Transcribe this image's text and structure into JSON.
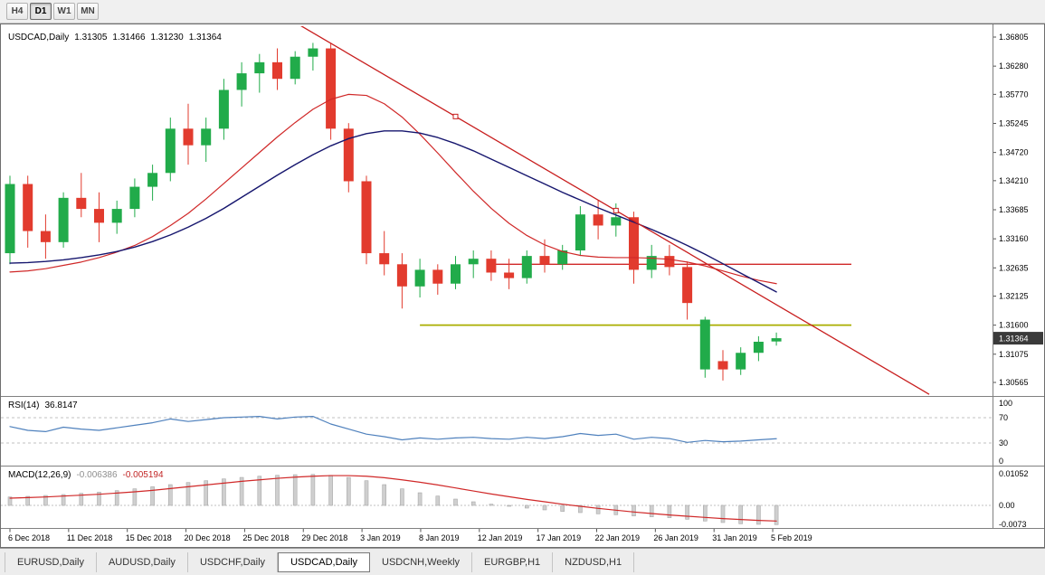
{
  "toolbar": {
    "timeframes": [
      {
        "label": "H4",
        "active": false
      },
      {
        "label": "D1",
        "active": true
      },
      {
        "label": "W1",
        "active": false
      },
      {
        "label": "MN",
        "active": false
      }
    ]
  },
  "chart": {
    "symbol_title": "USDCAD,Daily",
    "ohlc": {
      "open": "1.31305",
      "high": "1.31466",
      "low": "1.31230",
      "close": "1.31364"
    },
    "current_price": "1.31364",
    "price_axis": [
      "1.36805",
      "1.36280",
      "1.35770",
      "1.35245",
      "1.34720",
      "1.34210",
      "1.33685",
      "1.33160",
      "1.32635",
      "1.32125",
      "1.31600",
      "1.31075",
      "1.30565"
    ],
    "date_axis": [
      "6 Dec 2018",
      "11 Dec 2018",
      "15 Dec 2018",
      "20 Dec 2018",
      "25 Dec 2018",
      "29 Dec 2018",
      "3 Jan 2019",
      "8 Jan 2019",
      "12 Jan 2019",
      "17 Jan 2019",
      "22 Jan 2019",
      "26 Jan 2019",
      "31 Jan 2019",
      "5 Feb 2019"
    ]
  },
  "chart_data": {
    "type": "candlestick",
    "symbol": "USDCAD",
    "timeframe": "Daily",
    "ylim": [
      1.30565,
      1.36805
    ],
    "candles": [
      [
        "6 Dec",
        1.329,
        1.343,
        1.327,
        1.3415
      ],
      [
        "7 Dec",
        1.3415,
        1.343,
        1.33,
        1.333
      ],
      [
        "10 Dec",
        1.333,
        1.336,
        1.328,
        1.331
      ],
      [
        "11 Dec",
        1.331,
        1.34,
        1.33,
        1.339
      ],
      [
        "12 Dec",
        1.339,
        1.3435,
        1.3355,
        1.337
      ],
      [
        "13 Dec",
        1.337,
        1.34,
        1.331,
        1.3345
      ],
      [
        "14 Dec",
        1.3345,
        1.3385,
        1.3325,
        1.337
      ],
      [
        "17 Dec",
        1.337,
        1.3425,
        1.3355,
        1.341
      ],
      [
        "18 Dec",
        1.341,
        1.345,
        1.3385,
        1.3435
      ],
      [
        "19 Dec",
        1.3435,
        1.3535,
        1.342,
        1.3515
      ],
      [
        "20 Dec",
        1.3515,
        1.356,
        1.345,
        1.3485
      ],
      [
        "21 Dec",
        1.3485,
        1.3535,
        1.3455,
        1.3515
      ],
      [
        "24 Dec",
        1.3515,
        1.3605,
        1.3495,
        1.3585
      ],
      [
        "26 Dec",
        1.3585,
        1.3635,
        1.3555,
        1.3615
      ],
      [
        "27 Dec",
        1.3615,
        1.365,
        1.358,
        1.3635
      ],
      [
        "28 Dec",
        1.3635,
        1.366,
        1.3585,
        1.3605
      ],
      [
        "31 Dec",
        1.3605,
        1.3655,
        1.3595,
        1.3645
      ],
      [
        "1 Jan",
        1.3645,
        1.367,
        1.362,
        1.366
      ],
      [
        "2 Jan",
        1.366,
        1.367,
        1.3495,
        1.3515
      ],
      [
        "3 Jan",
        1.3515,
        1.3525,
        1.34,
        1.342
      ],
      [
        "4 Jan",
        1.342,
        1.343,
        1.327,
        1.329
      ],
      [
        "7 Jan",
        1.329,
        1.333,
        1.325,
        1.327
      ],
      [
        "8 Jan",
        1.327,
        1.329,
        1.319,
        1.323
      ],
      [
        "9 Jan",
        1.323,
        1.328,
        1.321,
        1.326
      ],
      [
        "10 Jan",
        1.326,
        1.327,
        1.3215,
        1.3235
      ],
      [
        "11 Jan",
        1.3235,
        1.3285,
        1.3225,
        1.327
      ],
      [
        "14 Jan",
        1.327,
        1.3295,
        1.3245,
        1.328
      ],
      [
        "15 Jan",
        1.328,
        1.3295,
        1.324,
        1.3255
      ],
      [
        "16 Jan",
        1.3255,
        1.328,
        1.3225,
        1.3245
      ],
      [
        "17 Jan",
        1.3245,
        1.3295,
        1.3235,
        1.3285
      ],
      [
        "18 Jan",
        1.3285,
        1.3315,
        1.3255,
        1.327
      ],
      [
        "21 Jan",
        1.327,
        1.3305,
        1.326,
        1.3295
      ],
      [
        "22 Jan",
        1.3295,
        1.3375,
        1.3285,
        1.336
      ],
      [
        "23 Jan",
        1.336,
        1.3385,
        1.3315,
        1.334
      ],
      [
        "24 Jan",
        1.334,
        1.338,
        1.332,
        1.3355
      ],
      [
        "25 Jan",
        1.3355,
        1.3365,
        1.3235,
        1.326
      ],
      [
        "28 Jan",
        1.326,
        1.3305,
        1.3245,
        1.3285
      ],
      [
        "29 Jan",
        1.3285,
        1.3305,
        1.325,
        1.3265
      ],
      [
        "30 Jan",
        1.3265,
        1.3275,
        1.317,
        1.32
      ],
      [
        "31 Jan",
        1.308,
        1.3175,
        1.3065,
        1.317
      ],
      [
        "1 Feb",
        1.3095,
        1.3115,
        1.306,
        1.308
      ],
      [
        "4 Feb",
        1.308,
        1.312,
        1.307,
        1.311
      ],
      [
        "5 Feb",
        1.311,
        1.314,
        1.3095,
        1.313
      ],
      [
        "6 Feb",
        1.31305,
        1.31466,
        1.3123,
        1.31364
      ]
    ],
    "ma_fast": [
      1.3256,
      1.3258,
      1.3262,
      1.3268,
      1.3274,
      1.3282,
      1.3292,
      1.3304,
      1.332,
      1.334,
      1.3362,
      1.3388,
      1.3416,
      1.3444,
      1.3472,
      1.35,
      1.3526,
      1.355,
      1.3568,
      1.3577,
      1.3575,
      1.356,
      1.3536,
      1.3505,
      1.3471,
      1.3436,
      1.3402,
      1.3371,
      1.3344,
      1.3322,
      1.3305,
      1.3293,
      1.3286,
      1.3283,
      1.3282,
      1.3282,
      1.3281,
      1.3279,
      1.3274,
      1.3267,
      1.3258,
      1.3249,
      1.3241,
      1.3235
    ],
    "ma_slow": [
      1.3272,
      1.3273,
      1.3275,
      1.3278,
      1.3282,
      1.3287,
      1.3293,
      1.3301,
      1.3311,
      1.3323,
      1.3337,
      1.3353,
      1.3371,
      1.3391,
      1.3411,
      1.3431,
      1.345,
      1.3468,
      1.3484,
      1.3497,
      1.3506,
      1.3511,
      1.3511,
      1.3507,
      1.3499,
      1.3488,
      1.3475,
      1.346,
      1.3445,
      1.343,
      1.3415,
      1.34,
      1.3386,
      1.3372,
      1.3359,
      1.3346,
      1.3333,
      1.3319,
      1.3304,
      1.3288,
      1.3271,
      1.3254,
      1.3237,
      1.322
    ],
    "trendline": {
      "i1": 16,
      "p1": 1.3707,
      "i2": 34,
      "p2": 1.3367,
      "extend_right": true
    },
    "resistance_line": {
      "price": 1.327,
      "start_index": 27
    },
    "support_line": {
      "price": 1.316,
      "start_index": 23
    },
    "rsi": {
      "label": "RSI(14)",
      "value": "36.8147",
      "levels": [
        100,
        70,
        30,
        0
      ],
      "series": [
        56,
        50,
        48,
        55,
        52,
        50,
        54,
        58,
        62,
        68,
        64,
        67,
        70,
        71,
        72,
        68,
        71,
        72,
        60,
        52,
        44,
        40,
        35,
        38,
        36,
        38,
        39,
        37,
        36,
        39,
        37,
        40,
        45,
        42,
        44,
        36,
        39,
        37,
        31,
        34,
        32,
        33,
        35,
        36.8
      ]
    },
    "macd": {
      "label": "MACD(12,26,9)",
      "macd_value": "-0.006386",
      "signal_value": "-0.005194",
      "scale": [
        {
          "label": "0.01052",
          "value": 0.01052
        },
        {
          "label": "0.00",
          "value": 0
        },
        {
          "label": "-0.0073",
          "value": -0.0073
        }
      ],
      "histogram": [
        0.0028,
        0.003,
        0.0033,
        0.0036,
        0.004,
        0.0044,
        0.0049,
        0.0055,
        0.0062,
        0.0069,
        0.0076,
        0.0082,
        0.0088,
        0.0093,
        0.0097,
        0.01,
        0.0102,
        0.0103,
        0.01,
        0.0093,
        0.0082,
        0.0069,
        0.0055,
        0.0042,
        0.0031,
        0.0021,
        0.0012,
        0.0004,
        -0.0003,
        -0.0009,
        -0.0015,
        -0.002,
        -0.0024,
        -0.0028,
        -0.0031,
        -0.0035,
        -0.0038,
        -0.0041,
        -0.0046,
        -0.0052,
        -0.0057,
        -0.0061,
        -0.0063,
        -0.0064
      ],
      "signal": [
        0.0024,
        0.0026,
        0.0028,
        0.0031,
        0.0034,
        0.0037,
        0.0041,
        0.0045,
        0.005,
        0.0056,
        0.0062,
        0.0068,
        0.0074,
        0.008,
        0.0085,
        0.009,
        0.0094,
        0.0097,
        0.0099,
        0.0099,
        0.0097,
        0.0092,
        0.0085,
        0.0077,
        0.0068,
        0.0058,
        0.0048,
        0.0038,
        0.0029,
        0.002,
        0.0012,
        0.0004,
        -0.0003,
        -0.001,
        -0.0016,
        -0.0022,
        -0.0027,
        -0.0032,
        -0.0036,
        -0.004,
        -0.0044,
        -0.0047,
        -0.005,
        -0.0052
      ]
    },
    "colors": {
      "bull": "#21ab4a",
      "bear": "#e23b2e",
      "ma_fast": "#d02828",
      "ma_slow": "#16166e",
      "trendline": "#c81e1e",
      "resistance": "#d02828",
      "support": "#a9ae00",
      "rsi": "#4f81bd",
      "macd_hist": "#cfcfcf",
      "macd_hist_border": "#a8a8a8",
      "macd_signal": "#d02828",
      "badge_bg": "#3a3a3a",
      "badge_text": "#ffffff"
    }
  },
  "tabs": [
    {
      "label": "EURUSD,Daily",
      "active": false
    },
    {
      "label": "AUDUSD,Daily",
      "active": false
    },
    {
      "label": "USDCHF,Daily",
      "active": false
    },
    {
      "label": "USDCAD,Daily",
      "active": true
    },
    {
      "label": "USDCNH,Weekly",
      "active": false
    },
    {
      "label": "EURGBP,H1",
      "active": false
    },
    {
      "label": "NZDUSD,H1",
      "active": false
    }
  ]
}
